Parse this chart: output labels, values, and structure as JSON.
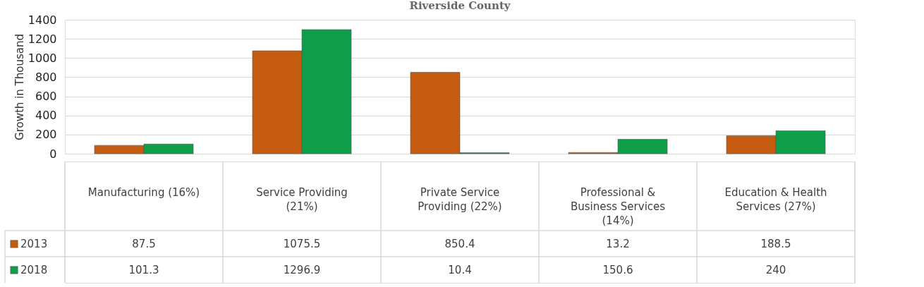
{
  "chart_data": {
    "type": "bar",
    "title": "Riverside County",
    "ylabel": "Growth in Thousand",
    "categories": [
      "Manufacturing (16%)",
      "Service Providing (21%)",
      "Private Service Providing (22%)",
      "Professional & Business Services (14%)",
      "Education & Health Services (27%)"
    ],
    "series": [
      {
        "name": "2013",
        "color": "#c55a11",
        "values": [
          87.5,
          1075.5,
          850.4,
          13.2,
          188.5
        ]
      },
      {
        "name": "2018",
        "color": "#0f9d4a",
        "values": [
          101.3,
          1296.9,
          10.4,
          150.6,
          240
        ]
      }
    ],
    "ylim": [
      0,
      1400
    ],
    "yticks": [
      0,
      200,
      400,
      600,
      800,
      1000,
      1200,
      1400
    ],
    "grid": "y",
    "legend": "bottom",
    "data_labels": true
  }
}
